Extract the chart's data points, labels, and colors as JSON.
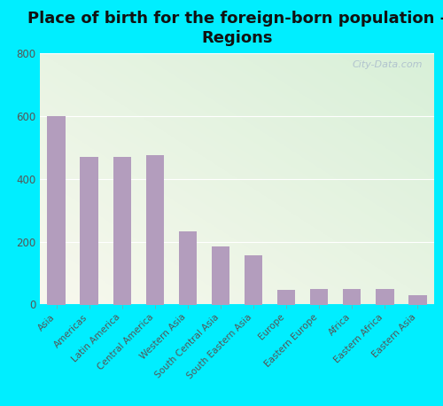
{
  "title": "Place of birth for the foreign-born population -\nRegions",
  "categories": [
    "Asia",
    "Americas",
    "Latin America",
    "Central America",
    "Western Asia",
    "South Central Asia",
    "South Eastern Asia",
    "Europe",
    "Eastern Europe",
    "Africa",
    "Eastern Africa",
    "Eastern Asia"
  ],
  "values": [
    600,
    470,
    470,
    475,
    232,
    185,
    155,
    47,
    50,
    48,
    48,
    30
  ],
  "bar_color": "#b39dbd",
  "background_color": "#00eeff",
  "plot_bg_color_topleft": "#d8f0d8",
  "plot_bg_color_bottomright": "#f8f8ee",
  "ylim": [
    0,
    800
  ],
  "yticks": [
    0,
    200,
    400,
    600,
    800
  ],
  "title_fontsize": 13,
  "tick_label_fontsize": 7.5,
  "watermark_text": "City-Data.com"
}
